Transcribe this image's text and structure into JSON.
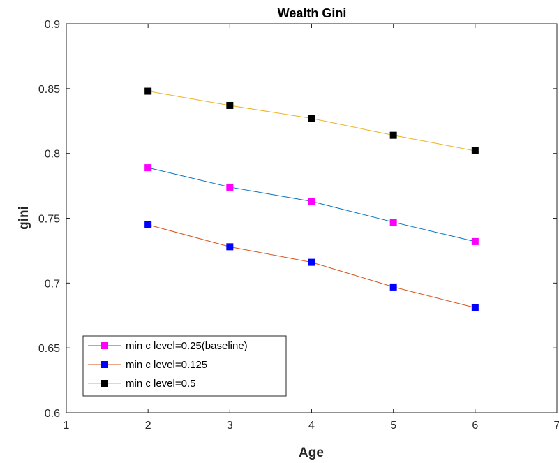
{
  "chart_data": {
    "type": "line",
    "title": "Wealth Gini",
    "xlabel": "Age",
    "ylabel": "gini",
    "xlim": [
      1,
      7
    ],
    "ylim": [
      0.6,
      0.9
    ],
    "xticks": [
      1,
      2,
      3,
      4,
      5,
      6,
      7
    ],
    "xtick_labels": [
      "1",
      "2",
      "3",
      "4",
      "5",
      "6",
      "7"
    ],
    "yticks": [
      0.6,
      0.65,
      0.7,
      0.75,
      0.8,
      0.85,
      0.9
    ],
    "ytick_labels": [
      "0.6",
      "0.65",
      "0.7",
      "0.75",
      "0.8",
      "0.85",
      "0.9"
    ],
    "x": [
      2,
      3,
      4,
      5,
      6
    ],
    "grid": false,
    "legend_position": "bottom-left",
    "series": [
      {
        "name": "min c level=0.25(baseline)",
        "values": [
          0.789,
          0.774,
          0.763,
          0.747,
          0.732
        ],
        "line_color": "#0072BD",
        "marker_color": "#FF00FF"
      },
      {
        "name": "min c level=0.125",
        "values": [
          0.745,
          0.728,
          0.716,
          0.697,
          0.681
        ],
        "line_color": "#D95319",
        "marker_color": "#0000FF"
      },
      {
        "name": "min c level=0.5",
        "values": [
          0.848,
          0.837,
          0.827,
          0.814,
          0.802
        ],
        "line_color": "#EDB120",
        "marker_color": "#000000"
      }
    ]
  }
}
